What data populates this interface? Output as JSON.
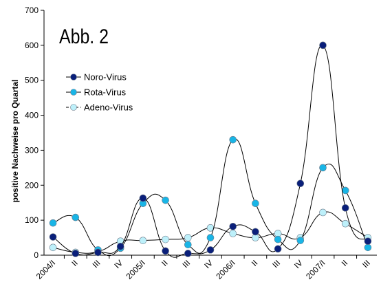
{
  "chart_data": {
    "type": "line",
    "title": "Abb. 2",
    "ylabel": "positive Nachweise pro Quartal",
    "xlabel": "",
    "ylim": [
      0,
      700
    ],
    "yticks": [
      0,
      100,
      200,
      300,
      400,
      500,
      600,
      700
    ],
    "grid": false,
    "legend_position": "top-left",
    "categories": [
      "2004/I",
      "II",
      "III",
      "IV",
      "2005/I",
      "II",
      "III",
      "IV",
      "2006/I",
      "II",
      "III",
      "IV",
      "2007/I",
      "II",
      "III"
    ],
    "series": [
      {
        "name": "Noro-Virus",
        "color": "#0a1f7a",
        "marker": "circle",
        "line_style": "solid",
        "values": [
          52,
          5,
          8,
          25,
          163,
          12,
          5,
          15,
          82,
          67,
          18,
          205,
          600,
          135,
          40
        ]
      },
      {
        "name": "Rota-Virus",
        "color": "#19b5e6",
        "marker": "circle",
        "line_style": "solid",
        "values": [
          92,
          108,
          15,
          20,
          148,
          157,
          30,
          50,
          330,
          148,
          45,
          42,
          250,
          185,
          22
        ]
      },
      {
        "name": "Adeno-Virus",
        "color": "#bdf0fa",
        "marker": "circle",
        "line_style": "dashed",
        "values": [
          22,
          8,
          10,
          40,
          42,
          45,
          50,
          78,
          62,
          50,
          62,
          50,
          122,
          90,
          50
        ]
      }
    ]
  }
}
